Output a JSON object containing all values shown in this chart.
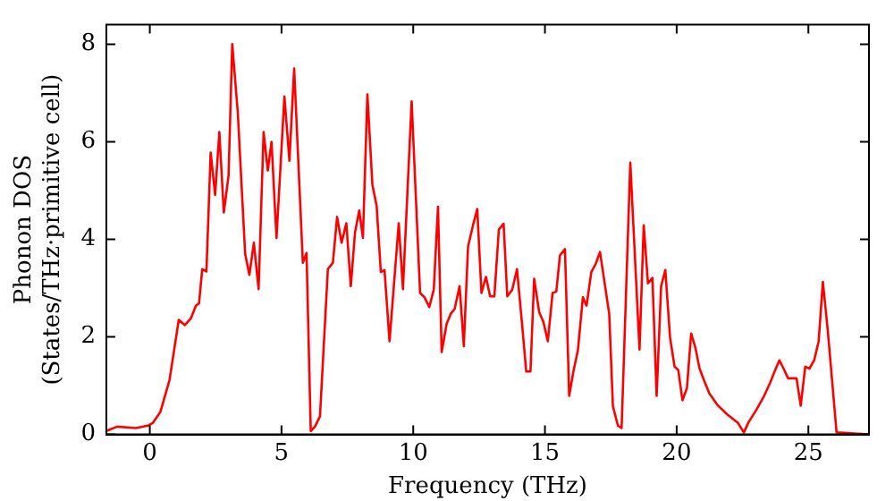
{
  "chart_data": {
    "type": "line",
    "xlabel": "Frequency (THz)",
    "ylabel": "Phonon DOS\n(States/THz·primitive cell)",
    "xlim": [
      -1.65,
      27.3
    ],
    "ylim": [
      0,
      8.4
    ],
    "xticks": [
      0,
      5,
      10,
      15,
      20,
      25
    ],
    "yticks": [
      0,
      2,
      4,
      6,
      8
    ],
    "grid": false,
    "legend": false,
    "marker": "none",
    "line_style": "solid",
    "series": [
      {
        "color": "#ff0000",
        "x": [
          -1.65,
          -1.24,
          -0.54,
          -0.07,
          0.12,
          0.4,
          0.75,
          1.1,
          1.33,
          1.56,
          1.75,
          1.87,
          1.99,
          2.15,
          2.31,
          2.48,
          2.64,
          2.81,
          2.99,
          3.13,
          3.34,
          3.62,
          3.78,
          3.95,
          4.13,
          4.32,
          4.48,
          4.62,
          4.81,
          5.11,
          5.3,
          5.48,
          5.81,
          5.95,
          6.11,
          6.27,
          6.46,
          6.76,
          6.95,
          7.11,
          7.28,
          7.46,
          7.63,
          7.79,
          7.95,
          8.09,
          8.26,
          8.45,
          8.61,
          8.77,
          8.91,
          9.1,
          9.45,
          9.61,
          9.94,
          10.26,
          10.43,
          10.61,
          10.78,
          10.94,
          11.08,
          11.27,
          11.43,
          11.57,
          11.76,
          11.92,
          12.08,
          12.27,
          12.43,
          12.59,
          12.76,
          12.92,
          13.08,
          13.25,
          13.43,
          13.57,
          13.76,
          13.94,
          14.13,
          14.29,
          14.45,
          14.59,
          14.78,
          14.94,
          15.11,
          15.29,
          15.43,
          15.57,
          15.76,
          15.92,
          16.09,
          16.25,
          16.44,
          16.58,
          16.76,
          16.93,
          17.09,
          17.44,
          17.58,
          17.77,
          17.91,
          18.24,
          18.59,
          18.75,
          18.91,
          19.08,
          19.24,
          19.41,
          19.57,
          19.75,
          19.92,
          20.06,
          20.22,
          20.39,
          20.55,
          20.71,
          20.87,
          21.06,
          21.24,
          21.57,
          21.92,
          22.32,
          22.55,
          22.74,
          23.02,
          23.32,
          23.55,
          23.74,
          23.9,
          24.06,
          24.23,
          24.55,
          24.71,
          24.88,
          25.04,
          25.22,
          25.39,
          25.55,
          25.74,
          25.93,
          26.07,
          27.3
        ],
        "values": [
          0.07,
          0.16,
          0.13,
          0.18,
          0.24,
          0.46,
          1.12,
          2.35,
          2.24,
          2.38,
          2.64,
          2.69,
          3.39,
          3.34,
          5.78,
          4.91,
          6.2,
          4.55,
          5.31,
          8.0,
          6.6,
          3.7,
          3.27,
          3.93,
          2.98,
          6.2,
          5.41,
          6.0,
          4.03,
          6.93,
          5.61,
          7.5,
          3.52,
          3.72,
          0.07,
          0.16,
          0.37,
          3.39,
          3.52,
          4.46,
          3.93,
          4.33,
          3.04,
          4.14,
          4.59,
          4.03,
          6.97,
          5.12,
          4.69,
          3.33,
          3.37,
          1.91,
          4.33,
          2.98,
          6.83,
          2.9,
          2.81,
          2.61,
          2.97,
          4.67,
          1.69,
          2.27,
          2.48,
          2.57,
          3.04,
          1.81,
          3.85,
          4.29,
          4.62,
          2.9,
          3.23,
          2.83,
          2.83,
          4.2,
          4.32,
          2.83,
          2.97,
          3.39,
          2.27,
          1.29,
          1.29,
          3.19,
          2.51,
          2.31,
          1.91,
          2.9,
          2.93,
          3.67,
          3.8,
          0.79,
          1.32,
          1.72,
          2.81,
          2.64,
          3.33,
          3.5,
          3.74,
          2.47,
          0.58,
          0.18,
          0.13,
          5.57,
          1.74,
          4.29,
          3.1,
          3.21,
          0.79,
          3.04,
          3.37,
          1.98,
          1.39,
          1.32,
          0.7,
          0.95,
          2.07,
          1.78,
          1.35,
          1.08,
          0.84,
          0.59,
          0.41,
          0.24,
          0.04,
          0.26,
          0.5,
          0.79,
          1.06,
          1.32,
          1.52,
          1.35,
          1.15,
          1.15,
          0.59,
          1.39,
          1.35,
          1.52,
          1.91,
          3.13,
          2.11,
          0.92,
          0.04,
          0
        ]
      }
    ]
  }
}
